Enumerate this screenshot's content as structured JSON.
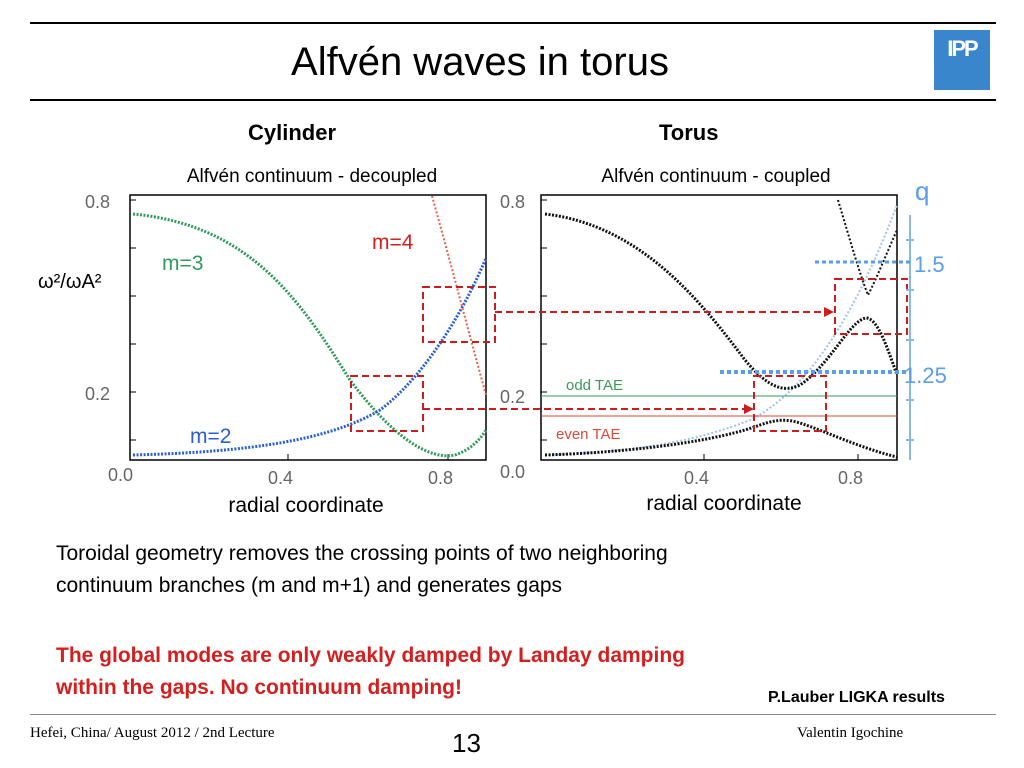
{
  "slide": {
    "title": "Alfvén waves in torus",
    "logo_text": "IPP",
    "colors": {
      "accent_red": "#d61e1e",
      "logo_blue": "#3a86cc"
    }
  },
  "figure": {
    "left_heading": "Cylinder",
    "right_heading": "Torus",
    "left_plot": {
      "title": "Alfvén continuum - decoupled",
      "ylabel": "ω²/ωA²",
      "xlabel": "radial coordinate",
      "yticks": [
        "0.8",
        "0.2",
        "0.0"
      ],
      "xticks": [
        "0.4",
        "0.8"
      ],
      "labels": {
        "m3": "m=3",
        "m4": "m=4",
        "m2": "m=2"
      }
    },
    "right_plot": {
      "title": "Alfvén continuum - coupled",
      "xlabel": "radial coordinate",
      "yticks": [
        "0.8",
        "0.2",
        "0.0"
      ],
      "xticks": [
        "0.4",
        "0.8"
      ],
      "labels": {
        "odd_tae": "odd TAE",
        "even_tae": "even TAE"
      }
    },
    "q_axis": {
      "label": "q",
      "ticks": [
        "1.5",
        "1.25"
      ]
    }
  },
  "text": {
    "para1_line1": "Toroidal geometry removes the crossing points of two neighboring",
    "para1_line2": "continuum branches (m and m+1) and generates gaps",
    "para2_line1": "The global modes are only weakly damped by Landay damping",
    "para2_line2": "within the gaps. No continuum damping!",
    "credit": "P.Lauber LIGKA results"
  },
  "footer": {
    "left": "Hefei, China/ August 2012 / 2nd Lecture",
    "page": "13",
    "right": "Valentin Igochine"
  }
}
